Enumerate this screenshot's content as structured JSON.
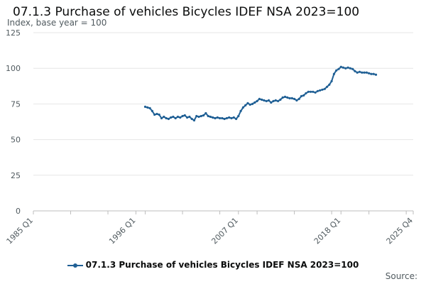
{
  "title": "07.1.3 Purchase of vehicles Bicycles IDEF NSA 2023=100",
  "subtitle": "Index, base year = 100",
  "source_label": "Source:",
  "colors": {
    "series": "#206095",
    "grid": "#e6e6e6",
    "axis": "#bdbdbd",
    "text": "#505a5f"
  },
  "chart_data": {
    "type": "line",
    "title": "07.1.3 Purchase of vehicles Bicycles IDEF NSA 2023=100",
    "ylabel": "Index, base year = 100",
    "xlabel": "",
    "ylim": [
      0,
      125
    ],
    "yticks": [
      0,
      25,
      50,
      75,
      100,
      125
    ],
    "xlim": [
      "1985 Q1",
      "2025 Q4"
    ],
    "x_tick_labels": [
      "1985 Q1",
      "1996 Q1",
      "2007 Q1",
      "2018 Q1",
      "2025 Q4"
    ],
    "grid": true,
    "legend": "bottom-center",
    "series": [
      {
        "name": "07.1.3 Purchase of vehicles Bicycles IDEF NSA 2023=100",
        "points": [
          [
            "1997 Q1",
            73
          ],
          [
            "1997 Q2",
            72.5
          ],
          [
            "1997 Q3",
            72
          ],
          [
            "1997 Q4",
            70
          ],
          [
            "1998 Q1",
            67.5
          ],
          [
            "1998 Q2",
            68
          ],
          [
            "1998 Q3",
            67.5
          ],
          [
            "1998 Q4",
            65
          ],
          [
            "1999 Q1",
            66
          ],
          [
            "1999 Q2",
            65
          ],
          [
            "1999 Q3",
            64.5
          ],
          [
            "1999 Q4",
            65.5
          ],
          [
            "2000 Q1",
            66
          ],
          [
            "2000 Q2",
            65
          ],
          [
            "2000 Q3",
            66
          ],
          [
            "2000 Q4",
            65.5
          ],
          [
            "2001 Q1",
            66.5
          ],
          [
            "2001 Q2",
            67
          ],
          [
            "2001 Q3",
            65.5
          ],
          [
            "2001 Q4",
            66
          ],
          [
            "2002 Q1",
            64.5
          ],
          [
            "2002 Q2",
            63.5
          ],
          [
            "2002 Q3",
            66.5
          ],
          [
            "2002 Q4",
            66
          ],
          [
            "2003 Q1",
            66.5
          ],
          [
            "2003 Q2",
            67
          ],
          [
            "2003 Q3",
            68.5
          ],
          [
            "2003 Q4",
            66.5
          ],
          [
            "2004 Q1",
            66
          ],
          [
            "2004 Q2",
            65.5
          ],
          [
            "2004 Q3",
            65
          ],
          [
            "2004 Q4",
            65.5
          ],
          [
            "2005 Q1",
            65
          ],
          [
            "2005 Q2",
            65
          ],
          [
            "2005 Q3",
            64.5
          ],
          [
            "2005 Q4",
            65
          ],
          [
            "2006 Q1",
            65.5
          ],
          [
            "2006 Q2",
            65
          ],
          [
            "2006 Q3",
            65.5
          ],
          [
            "2006 Q4",
            64.5
          ],
          [
            "2007 Q1",
            66.5
          ],
          [
            "2007 Q2",
            70
          ],
          [
            "2007 Q3",
            72.5
          ],
          [
            "2007 Q4",
            74
          ],
          [
            "2008 Q1",
            75.5
          ],
          [
            "2008 Q2",
            74.5
          ],
          [
            "2008 Q3",
            75
          ],
          [
            "2008 Q4",
            76
          ],
          [
            "2009 Q1",
            77
          ],
          [
            "2009 Q2",
            78.5
          ],
          [
            "2009 Q3",
            78
          ],
          [
            "2009 Q4",
            77.5
          ],
          [
            "2010 Q1",
            77
          ],
          [
            "2010 Q2",
            77.5
          ],
          [
            "2010 Q3",
            76
          ],
          [
            "2010 Q4",
            77
          ],
          [
            "2011 Q1",
            77.5
          ],
          [
            "2011 Q2",
            77
          ],
          [
            "2011 Q3",
            78
          ],
          [
            "2011 Q4",
            79.5
          ],
          [
            "2012 Q1",
            80
          ],
          [
            "2012 Q2",
            79.5
          ],
          [
            "2012 Q3",
            79
          ],
          [
            "2012 Q4",
            79
          ],
          [
            "2013 Q1",
            78.5
          ],
          [
            "2013 Q2",
            77.5
          ],
          [
            "2013 Q3",
            78.5
          ],
          [
            "2013 Q4",
            80.5
          ],
          [
            "2014 Q1",
            81
          ],
          [
            "2014 Q2",
            82.5
          ],
          [
            "2014 Q3",
            83.5
          ],
          [
            "2014 Q4",
            83.5
          ],
          [
            "2015 Q1",
            83.5
          ],
          [
            "2015 Q2",
            83
          ],
          [
            "2015 Q3",
            84
          ],
          [
            "2015 Q4",
            84.5
          ],
          [
            "2016 Q1",
            85
          ],
          [
            "2016 Q2",
            85.5
          ],
          [
            "2016 Q3",
            87
          ],
          [
            "2016 Q4",
            88.5
          ],
          [
            "2017 Q1",
            91
          ],
          [
            "2017 Q2",
            96
          ],
          [
            "2017 Q3",
            98.5
          ],
          [
            "2017 Q4",
            99.5
          ],
          [
            "2018 Q1",
            101
          ],
          [
            "2018 Q2",
            100.5
          ],
          [
            "2018 Q3",
            100
          ],
          [
            "2018 Q4",
            100.5
          ],
          [
            "2019 Q1",
            100
          ],
          [
            "2019 Q2",
            99.5
          ],
          [
            "2019 Q3",
            98
          ],
          [
            "2019 Q4",
            97
          ],
          [
            "2020 Q1",
            97.5
          ],
          [
            "2020 Q2",
            97
          ],
          [
            "2020 Q3",
            97
          ],
          [
            "2020 Q4",
            97
          ],
          [
            "2021 Q1",
            96.5
          ],
          [
            "2021 Q2",
            96
          ],
          [
            "2021 Q3",
            96
          ],
          [
            "2021 Q4",
            95.5
          ]
        ]
      }
    ]
  }
}
